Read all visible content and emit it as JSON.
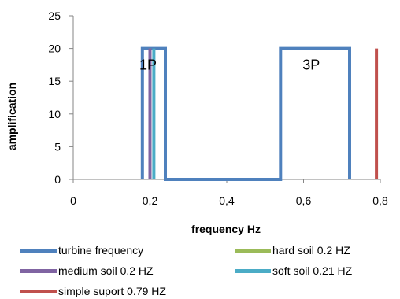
{
  "chart_data": {
    "type": "line",
    "title": "",
    "xlabel": "frequency Hz",
    "ylabel": "amplification",
    "xlim": [
      0,
      0.8
    ],
    "ylim": [
      0,
      25
    ],
    "x_ticks": [
      "0",
      "0,2",
      "0,4",
      "0,6",
      "0,8"
    ],
    "y_ticks": [
      "0",
      "5",
      "10",
      "15",
      "20",
      "25"
    ],
    "grid": false,
    "legend_position": "bottom",
    "annotations": [
      {
        "text": "1P",
        "x": 0.195,
        "y": 17.5
      },
      {
        "text": "3P",
        "x": 0.62,
        "y": 17.5
      }
    ],
    "series": [
      {
        "name": "turbine frequency",
        "color": "#4f81bd",
        "x": [
          0.18,
          0.18,
          0.24,
          0.24,
          0.54,
          0.54,
          0.72,
          0.72
        ],
        "y": [
          0,
          20,
          20,
          0,
          0,
          20,
          20,
          0
        ]
      },
      {
        "name": "hard soil 0.2 HZ",
        "color": "#9bbb59",
        "x": [
          0.2,
          0.2
        ],
        "y": [
          0,
          20
        ]
      },
      {
        "name": "medium soil 0.2 HZ",
        "color": "#8064a2",
        "x": [
          0.2,
          0.2
        ],
        "y": [
          0,
          20
        ]
      },
      {
        "name": "soft soil 0.21 HZ",
        "color": "#4bacc6",
        "x": [
          0.21,
          0.21
        ],
        "y": [
          0,
          20
        ]
      },
      {
        "name": "simple suport 0.79 HZ",
        "color": "#c0504d",
        "x": [
          0.79,
          0.79
        ],
        "y": [
          0,
          20
        ]
      }
    ]
  }
}
